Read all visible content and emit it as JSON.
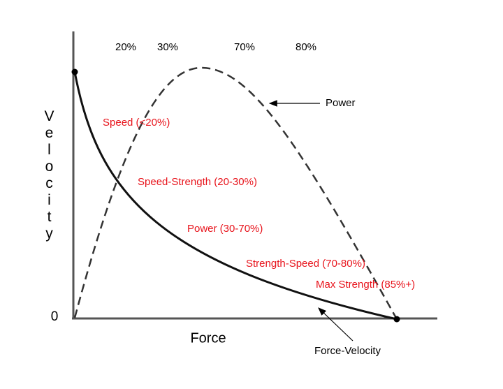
{
  "percent_labels": [
    "20%",
    "30%",
    "70%",
    "80%"
  ],
  "curves": {
    "power": "Power",
    "force_velocity": "Force-Velocity"
  },
  "zones": [
    "Speed (<20%)",
    "Speed-Strength (20-30%)",
    "Power (30-70%)",
    "Strength-Speed (70-80%)",
    "Max Strength (85%+)"
  ],
  "axes": {
    "y_label": "Velocity",
    "x_label": "Force",
    "origin": "0"
  }
}
